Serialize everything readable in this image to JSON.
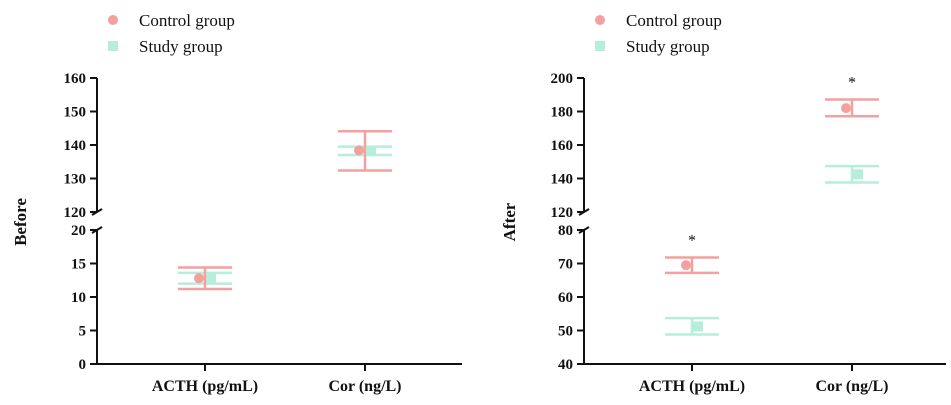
{
  "chart_data": [
    {
      "type": "scatter",
      "title": "",
      "ylabel": "Before",
      "categories": [
        "ACTH (pg/mL)",
        "Cor (ng/L)"
      ],
      "legend": {
        "position": "top-left",
        "entries": [
          "Control group",
          "Study group"
        ]
      },
      "axis_break": {
        "lower_range": [
          0,
          20
        ],
        "upper_range": [
          120,
          160
        ]
      },
      "yticks_lower": [
        0,
        5,
        10,
        15,
        20
      ],
      "yticks_upper": [
        120,
        130,
        140,
        150,
        160
      ],
      "series": [
        {
          "name": "Control group",
          "marker": "circle",
          "color": "#f4a09e",
          "values": [
            12.8,
            138.4
          ],
          "error_low": [
            11.2,
            132.4
          ],
          "error_high": [
            14.4,
            144.1
          ]
        },
        {
          "name": "Study group",
          "marker": "square",
          "color": "#b6eedb",
          "values": [
            12.9,
            138.2
          ],
          "error_low": [
            12.0,
            137.0
          ],
          "error_high": [
            13.6,
            139.5
          ]
        }
      ],
      "annotations": []
    },
    {
      "type": "scatter",
      "title": "",
      "ylabel": "After",
      "categories": [
        "ACTH (pg/mL)",
        "Cor (ng/L)"
      ],
      "legend": {
        "position": "top-left",
        "entries": [
          "Control group",
          "Study group"
        ]
      },
      "axis_break": {
        "lower_range": [
          40,
          80
        ],
        "upper_range": [
          120,
          200
        ]
      },
      "yticks_lower": [
        40,
        50,
        60,
        70,
        80
      ],
      "yticks_upper": [
        120,
        140,
        160,
        180,
        200
      ],
      "series": [
        {
          "name": "Control group",
          "marker": "circle",
          "color": "#f4a09e",
          "values": [
            69.5,
            182.0
          ],
          "error_low": [
            67.2,
            177.2
          ],
          "error_high": [
            71.8,
            187.2
          ]
        },
        {
          "name": "Study group",
          "marker": "square",
          "color": "#b6eedb",
          "values": [
            51.2,
            142.5
          ],
          "error_low": [
            48.8,
            137.6
          ],
          "error_high": [
            53.7,
            147.4
          ]
        }
      ],
      "annotations": [
        {
          "category": "ACTH (pg/mL)",
          "text": "*"
        },
        {
          "category": "Cor (ng/L)",
          "text": "*"
        }
      ]
    }
  ]
}
